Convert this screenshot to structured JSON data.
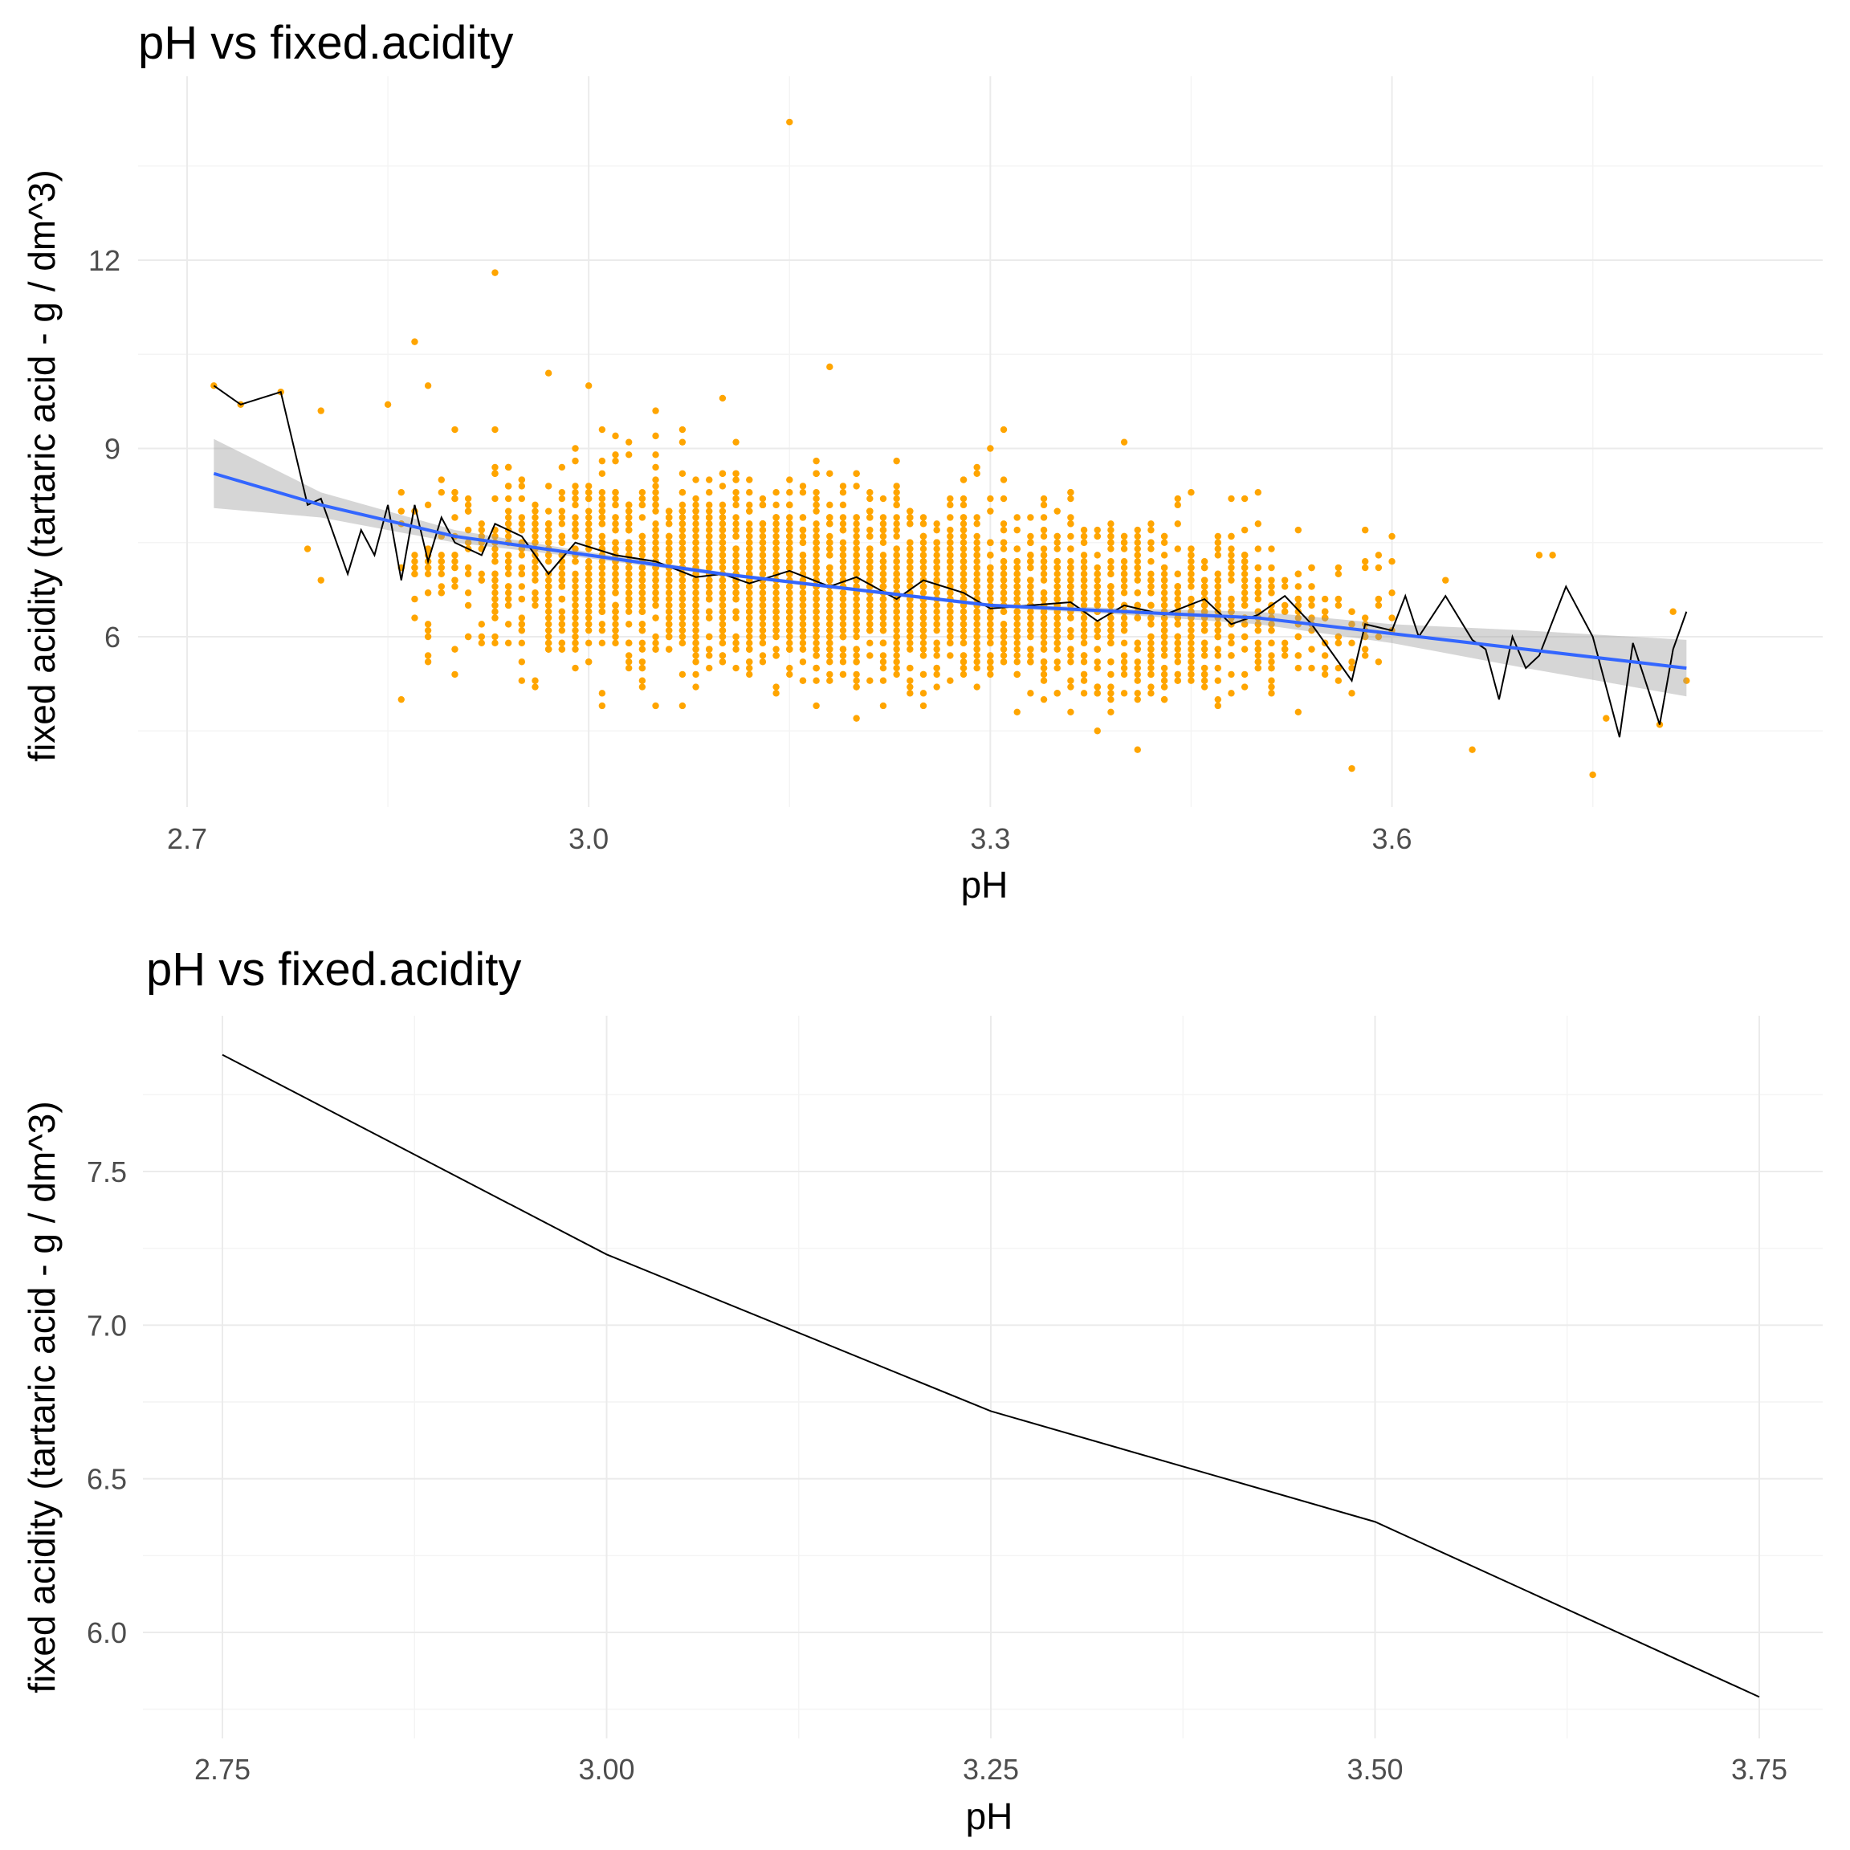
{
  "chart_data": [
    {
      "type": "scatter",
      "title": "pH vs fixed.acidity",
      "xlabel": "pH",
      "ylabel": "fixed acidity (tartaric acid - g / dm^3)",
      "xlim": [
        2.69,
        3.84
      ],
      "ylim": [
        3.5,
        14.6
      ],
      "x_ticks": [
        2.7,
        3.0,
        3.3,
        3.6
      ],
      "x_tick_labels": [
        "2.7",
        "3.0",
        "3.3",
        "3.6"
      ],
      "y_ticks": [
        6,
        9,
        12
      ],
      "y_tick_labels": [
        "6",
        "9",
        "12"
      ],
      "grid": true,
      "legend": "none",
      "colors": {
        "points": "#ffa500",
        "mean_line": "#000000",
        "smooth_line": "#3366ff",
        "ribbon": "#999999"
      },
      "points_sample": [
        [
          2.72,
          10.0
        ],
        [
          2.74,
          9.7
        ],
        [
          2.77,
          9.9
        ],
        [
          2.79,
          7.4
        ],
        [
          2.8,
          6.9
        ],
        [
          2.8,
          9.6
        ],
        [
          2.85,
          9.7
        ],
        [
          2.87,
          10.7
        ],
        [
          2.88,
          10.0
        ],
        [
          2.9,
          9.3
        ],
        [
          2.93,
          11.8
        ],
        [
          2.97,
          10.2
        ],
        [
          3.0,
          10.0
        ],
        [
          3.05,
          9.6
        ],
        [
          3.07,
          4.9
        ],
        [
          3.1,
          9.8
        ],
        [
          3.15,
          14.2
        ],
        [
          3.18,
          10.3
        ],
        [
          3.2,
          4.7
        ],
        [
          3.3,
          9.0
        ],
        [
          3.38,
          4.5
        ],
        [
          3.41,
          4.2
        ],
        [
          3.45,
          8.3
        ],
        [
          3.49,
          8.2
        ],
        [
          3.57,
          3.9
        ],
        [
          3.6,
          7.6
        ],
        [
          3.64,
          6.9
        ],
        [
          3.66,
          4.2
        ],
        [
          3.71,
          7.3
        ],
        [
          3.72,
          7.3
        ],
        [
          3.75,
          3.8
        ],
        [
          3.76,
          4.7
        ],
        [
          3.8,
          4.6
        ],
        [
          3.81,
          6.4
        ],
        [
          3.82,
          5.3
        ]
      ],
      "point_cloud": [
        {
          "x_mean": 3.17,
          "x_sd": 0.14,
          "y_mean": 6.85,
          "y_sd": 0.68,
          "count": 1450
        },
        {
          "x_mean": 3.3,
          "x_sd": 0.12,
          "y_mean": 6.4,
          "y_sd": 0.55,
          "count": 900
        },
        {
          "x_mean": 3.04,
          "x_sd": 0.1,
          "y_mean": 7.3,
          "y_sd": 0.72,
          "count": 700
        },
        {
          "x_mean": 3.46,
          "x_sd": 0.08,
          "y_mean": 6.2,
          "y_sd": 0.6,
          "count": 350
        }
      ],
      "mean_line": {
        "x": [
          2.72,
          2.74,
          2.77,
          2.79,
          2.8,
          2.82,
          2.83,
          2.84,
          2.85,
          2.86,
          2.87,
          2.88,
          2.89,
          2.9,
          2.92,
          2.93,
          2.95,
          2.97,
          2.99,
          3.02,
          3.05,
          3.08,
          3.1,
          3.12,
          3.15,
          3.18,
          3.2,
          3.23,
          3.25,
          3.28,
          3.3,
          3.33,
          3.36,
          3.38,
          3.4,
          3.43,
          3.46,
          3.48,
          3.5,
          3.52,
          3.54,
          3.55,
          3.57,
          3.58,
          3.6,
          3.61,
          3.62,
          3.64,
          3.66,
          3.67,
          3.68,
          3.69,
          3.7,
          3.71,
          3.73,
          3.75,
          3.77,
          3.78,
          3.8,
          3.81,
          3.82
        ],
        "y": [
          10.0,
          9.7,
          9.9,
          8.1,
          8.2,
          7.0,
          7.7,
          7.3,
          8.1,
          6.9,
          8.1,
          7.2,
          7.9,
          7.5,
          7.3,
          7.8,
          7.6,
          7.0,
          7.5,
          7.3,
          7.2,
          6.95,
          7.0,
          6.85,
          7.05,
          6.8,
          6.95,
          6.6,
          6.9,
          6.7,
          6.45,
          6.5,
          6.55,
          6.25,
          6.5,
          6.35,
          6.6,
          6.2,
          6.35,
          6.65,
          6.2,
          5.9,
          5.3,
          6.2,
          6.1,
          6.65,
          6.0,
          6.65,
          5.95,
          5.8,
          5.0,
          6.0,
          5.5,
          5.7,
          6.8,
          6.0,
          4.4,
          5.9,
          4.6,
          5.8,
          6.4
        ]
      },
      "smooth_line": {
        "x": [
          2.72,
          2.8,
          2.9,
          3.0,
          3.1,
          3.2,
          3.3,
          3.4,
          3.5,
          3.6,
          3.7,
          3.82
        ],
        "y": [
          8.6,
          8.1,
          7.6,
          7.3,
          7.0,
          6.75,
          6.5,
          6.4,
          6.3,
          6.05,
          5.8,
          5.5
        ],
        "ribbon_lower": [
          8.05,
          7.9,
          7.5,
          7.25,
          6.97,
          6.72,
          6.47,
          6.35,
          6.2,
          5.9,
          5.5,
          5.05
        ],
        "ribbon_upper": [
          9.15,
          8.3,
          7.7,
          7.35,
          7.03,
          6.78,
          6.53,
          6.45,
          6.4,
          6.2,
          6.1,
          5.95
        ]
      }
    },
    {
      "type": "line",
      "title": "pH vs fixed.acidity",
      "xlabel": "pH",
      "ylabel": "fixed acidity (tartaric acid - g / dm^3)",
      "xlim": [
        2.7,
        3.79
      ],
      "ylim": [
        5.75,
        8.0
      ],
      "x_ticks": [
        2.75,
        3.0,
        3.25,
        3.5,
        3.75
      ],
      "x_tick_labels": [
        "2.75",
        "3.00",
        "3.25",
        "3.50",
        "3.75"
      ],
      "y_ticks": [
        6.0,
        6.5,
        7.0,
        7.5
      ],
      "y_tick_labels": [
        "6.0",
        "6.5",
        "7.0",
        "7.5"
      ],
      "grid": true,
      "legend": "none",
      "colors": {
        "line": "#000000"
      },
      "x": [
        2.75,
        3.0,
        3.25,
        3.5,
        3.75
      ],
      "y": [
        7.88,
        7.23,
        6.72,
        6.36,
        5.79
      ]
    }
  ]
}
